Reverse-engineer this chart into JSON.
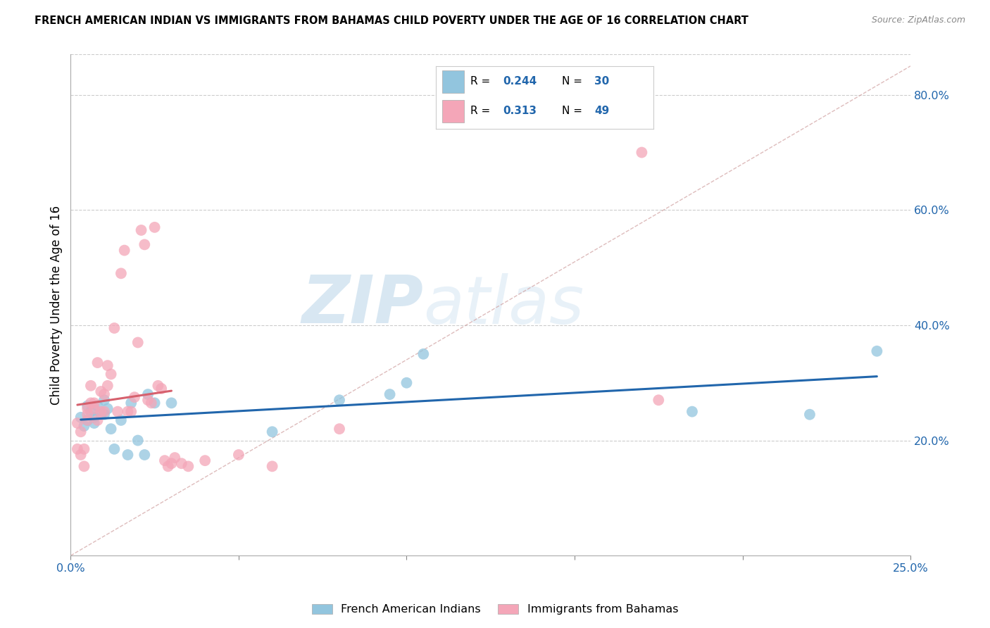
{
  "title": "FRENCH AMERICAN INDIAN VS IMMIGRANTS FROM BAHAMAS CHILD POVERTY UNDER THE AGE OF 16 CORRELATION CHART",
  "source": "Source: ZipAtlas.com",
  "ylabel": "Child Poverty Under the Age of 16",
  "xlim": [
    0.0,
    0.25
  ],
  "ylim": [
    0.0,
    0.87
  ],
  "yticks": [
    0.2,
    0.4,
    0.6,
    0.8
  ],
  "ytick_labels": [
    "20.0%",
    "40.0%",
    "60.0%",
    "80.0%"
  ],
  "color_blue": "#92c5de",
  "color_pink": "#f4a6b8",
  "line_blue": "#2166ac",
  "line_pink": "#d6606d",
  "line_diag_color": "#d0a0a0",
  "watermark_zip": "ZIP",
  "watermark_atlas": "atlas",
  "blue_x": [
    0.003,
    0.004,
    0.005,
    0.005,
    0.006,
    0.007,
    0.007,
    0.008,
    0.009,
    0.01,
    0.01,
    0.011,
    0.012,
    0.013,
    0.015,
    0.017,
    0.018,
    0.02,
    0.022,
    0.023,
    0.025,
    0.03,
    0.06,
    0.08,
    0.095,
    0.1,
    0.105,
    0.185,
    0.22,
    0.24
  ],
  "blue_y": [
    0.24,
    0.225,
    0.235,
    0.26,
    0.25,
    0.24,
    0.23,
    0.26,
    0.245,
    0.245,
    0.27,
    0.255,
    0.22,
    0.185,
    0.235,
    0.175,
    0.265,
    0.2,
    0.175,
    0.28,
    0.265,
    0.265,
    0.215,
    0.27,
    0.28,
    0.3,
    0.35,
    0.25,
    0.245,
    0.355
  ],
  "pink_x": [
    0.002,
    0.002,
    0.003,
    0.003,
    0.004,
    0.004,
    0.005,
    0.005,
    0.005,
    0.006,
    0.006,
    0.007,
    0.007,
    0.008,
    0.008,
    0.009,
    0.009,
    0.01,
    0.01,
    0.011,
    0.011,
    0.012,
    0.013,
    0.014,
    0.015,
    0.016,
    0.017,
    0.018,
    0.019,
    0.02,
    0.021,
    0.022,
    0.023,
    0.024,
    0.025,
    0.026,
    0.027,
    0.028,
    0.029,
    0.03,
    0.031,
    0.033,
    0.035,
    0.04,
    0.05,
    0.06,
    0.08,
    0.17,
    0.175
  ],
  "pink_y": [
    0.23,
    0.185,
    0.175,
    0.215,
    0.185,
    0.155,
    0.235,
    0.255,
    0.245,
    0.265,
    0.295,
    0.265,
    0.255,
    0.235,
    0.335,
    0.25,
    0.285,
    0.25,
    0.28,
    0.295,
    0.33,
    0.315,
    0.395,
    0.25,
    0.49,
    0.53,
    0.25,
    0.25,
    0.275,
    0.37,
    0.565,
    0.54,
    0.27,
    0.265,
    0.57,
    0.295,
    0.29,
    0.165,
    0.155,
    0.16,
    0.17,
    0.16,
    0.155,
    0.165,
    0.175,
    0.155,
    0.22,
    0.7,
    0.27
  ],
  "pink_reg_xrange": [
    0.002,
    0.03
  ],
  "legend_items": [
    {
      "color": "#92c5de",
      "r": "0.244",
      "n": "30"
    },
    {
      "color": "#f4a6b8",
      "r": "0.313",
      "n": "49"
    }
  ],
  "legend_labels": [
    "French American Indians",
    "Immigrants from Bahamas"
  ]
}
